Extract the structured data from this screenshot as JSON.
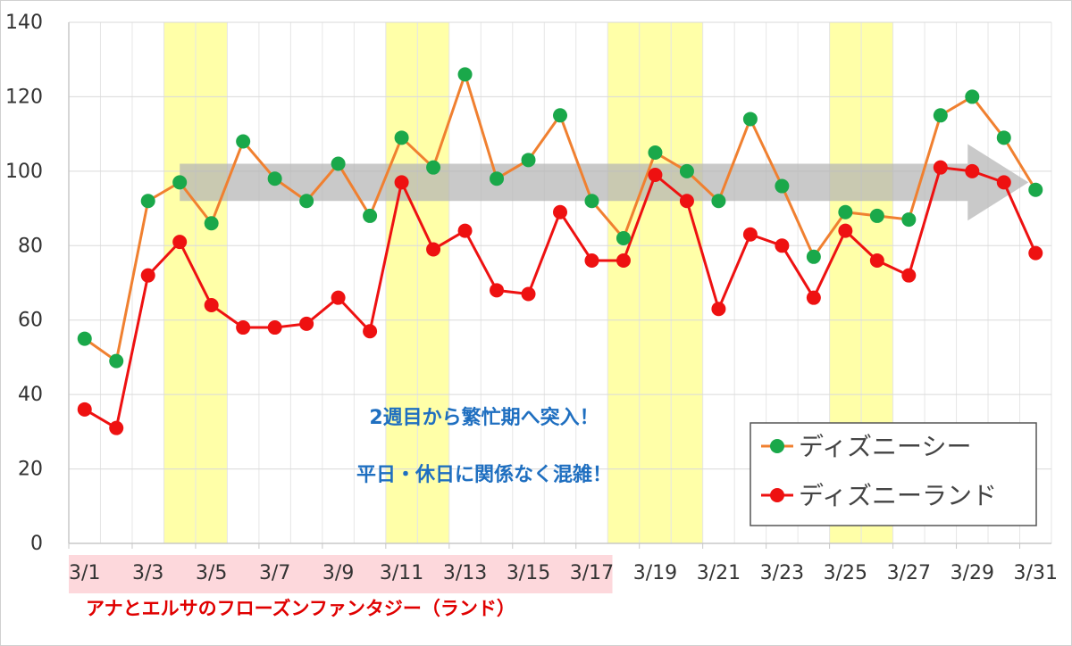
{
  "chart_data": {
    "type": "line",
    "x": [
      "3/1",
      "3/2",
      "3/3",
      "3/4",
      "3/5",
      "3/6",
      "3/7",
      "3/8",
      "3/9",
      "3/10",
      "3/11",
      "3/12",
      "3/13",
      "3/14",
      "3/15",
      "3/16",
      "3/17",
      "3/18",
      "3/19",
      "3/20",
      "3/21",
      "3/22",
      "3/23",
      "3/24",
      "3/25",
      "3/26",
      "3/27",
      "3/28",
      "3/29",
      "3/30",
      "3/31"
    ],
    "x_tick_labels": [
      "3/1",
      "3/3",
      "3/5",
      "3/7",
      "3/9",
      "3/11",
      "3/13",
      "3/15",
      "3/17",
      "3/19",
      "3/21",
      "3/23",
      "3/25",
      "3/27",
      "3/29",
      "3/31"
    ],
    "ylim": [
      0,
      140
    ],
    "y_ticks": [
      "0",
      "20",
      "40",
      "60",
      "80",
      "100",
      "120",
      "140"
    ],
    "grid": true,
    "series": [
      {
        "name": "ディズニーシー",
        "line_color": "#f08030",
        "marker_color": "#1aa84a",
        "values": [
          55,
          49,
          92,
          97,
          86,
          108,
          98,
          92,
          102,
          88,
          109,
          101,
          126,
          98,
          103,
          115,
          92,
          82,
          105,
          100,
          92,
          114,
          96,
          77,
          89,
          88,
          87,
          115,
          120,
          109,
          95
        ]
      },
      {
        "name": "ディズニーランド",
        "line_color": "#ee1111",
        "marker_color": "#ee1111",
        "values": [
          36,
          31,
          72,
          81,
          64,
          58,
          58,
          59,
          66,
          57,
          97,
          79,
          84,
          68,
          67,
          89,
          76,
          76,
          99,
          92,
          63,
          83,
          80,
          66,
          84,
          76,
          72,
          101,
          100,
          97,
          78
        ]
      }
    ],
    "highlighted_ranges": [
      [
        "3/4",
        "3/5"
      ],
      [
        "3/11",
        "3/12"
      ],
      [
        "3/18",
        "3/20"
      ],
      [
        "3/25",
        "3/26"
      ]
    ],
    "highlight_color": "#ffffa8",
    "trend_arrow": {
      "from": "3/4",
      "to": "3/31",
      "y_range": [
        92,
        102
      ],
      "color": "#b4b4b4"
    },
    "annotations": [
      "2週目から繁忙期へ突入！",
      "平日・休日に関係なく混雑！"
    ],
    "event_label": "アナとエルサのフローズンファンタジー（ランド）",
    "event_range": [
      "3/1",
      "3/17"
    ],
    "event_band_color": "#fdd8dc",
    "legend_position": "bottom-right"
  }
}
